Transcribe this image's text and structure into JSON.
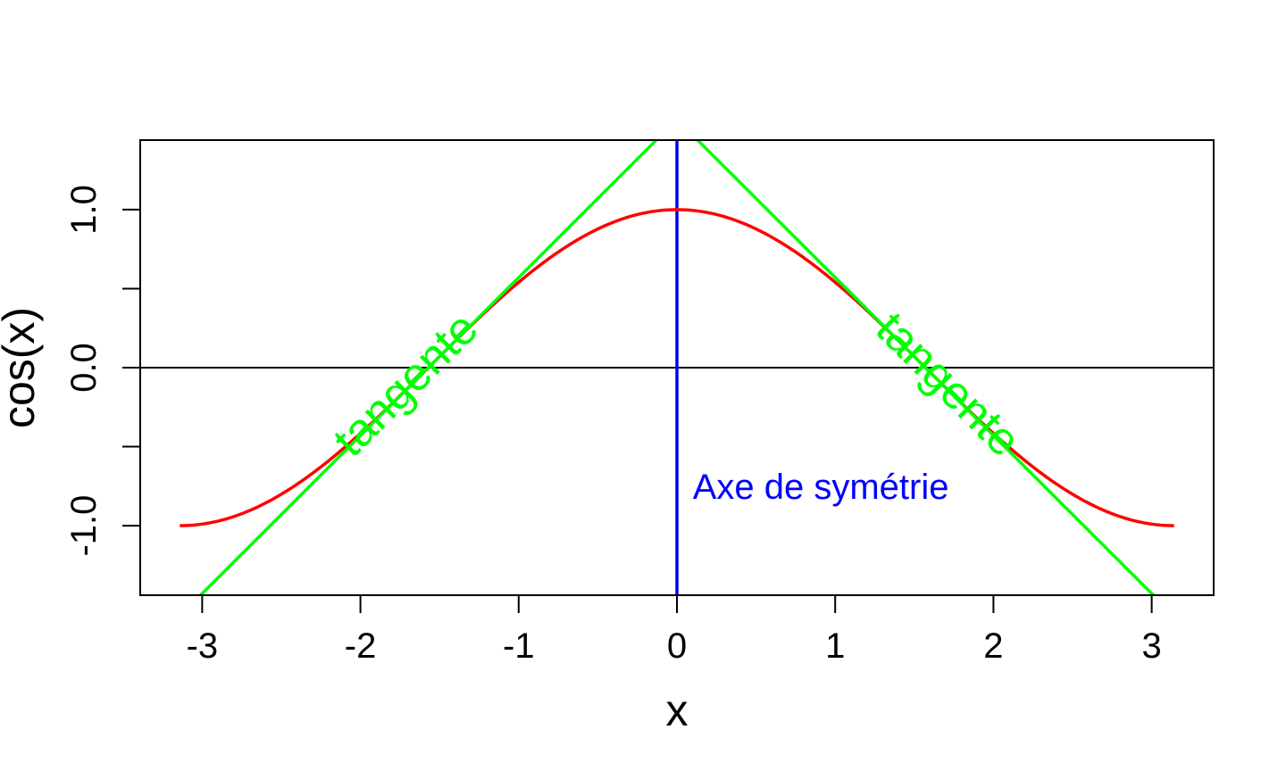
{
  "chart_data": {
    "type": "line",
    "title": "",
    "xlabel": "x",
    "ylabel": "cos(x)",
    "xlim": [
      -3.3916,
      3.3916
    ],
    "ylim": [
      -1.44,
      1.44
    ],
    "x_ticks": [
      -3,
      -2,
      -1,
      0,
      1,
      2,
      3
    ],
    "x_tick_labels": [
      "-3",
      "-2",
      "-1",
      "0",
      "1",
      "2",
      "3"
    ],
    "y_ticks": [
      -1.0,
      -0.5,
      0.0,
      0.5,
      1.0
    ],
    "y_tick_labels": [
      "-1.0",
      "",
      "0.0",
      "",
      "1.0"
    ],
    "grid": false,
    "series": [
      {
        "kind": "curve",
        "function": "cos",
        "x_range": [
          -3.1416,
          3.1416
        ],
        "color": "#ff0000"
      },
      {
        "kind": "line",
        "slope": 1,
        "intercept": 1.5708,
        "color": "#00ff00"
      },
      {
        "kind": "line",
        "slope": -1,
        "intercept": 1.5708,
        "color": "#00ff00"
      }
    ],
    "reference_lines": [
      {
        "orientation": "horizontal",
        "value": 0,
        "color": "#000000"
      },
      {
        "orientation": "vertical",
        "value": 0,
        "color": "#0000ff"
      }
    ],
    "annotations": [
      {
        "text": "tangente",
        "x": -1.7,
        "y": -0.12,
        "angle": -45,
        "color": "#00ff00"
      },
      {
        "text": "tangente",
        "x": 1.7,
        "y": -0.12,
        "angle": 45,
        "color": "#00ff00"
      },
      {
        "text": "Axe de symétrie",
        "x": 0.1,
        "y": -0.77,
        "angle": 0,
        "color": "#0000ff"
      }
    ]
  }
}
